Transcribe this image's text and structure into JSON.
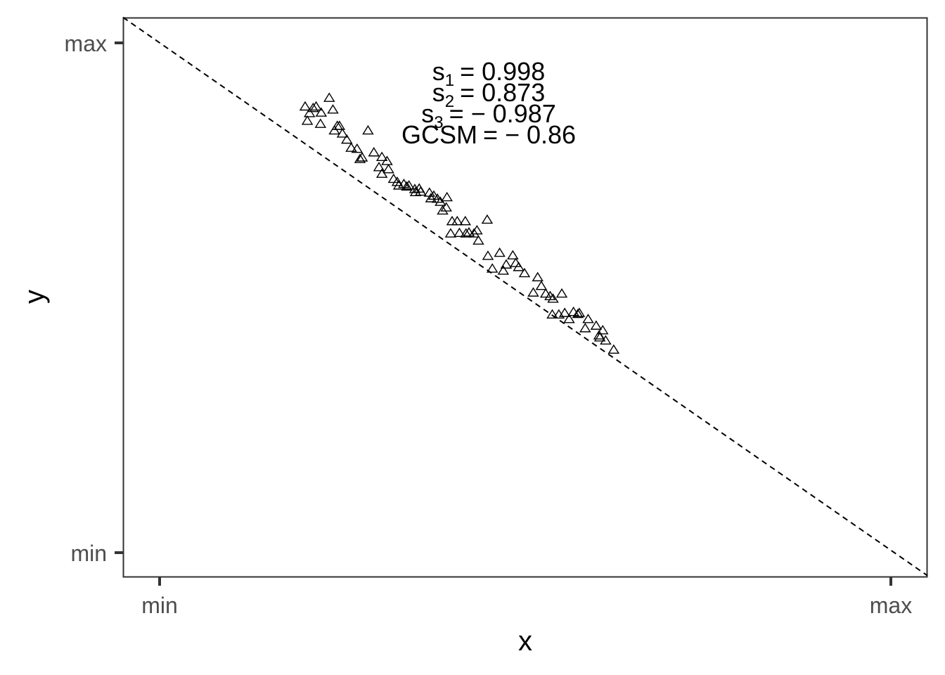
{
  "chart_data": {
    "type": "scatter",
    "title": "",
    "xlabel": "x",
    "ylabel": "y",
    "xlim": [
      -0.05,
      1.05
    ],
    "ylim": [
      -0.045,
      1.05
    ],
    "x_ticks": [
      {
        "value": 0,
        "label": "min"
      },
      {
        "value": 1,
        "label": "max"
      }
    ],
    "y_ticks": [
      {
        "value": 0,
        "label": "min"
      },
      {
        "value": 1,
        "label": "max"
      }
    ],
    "grid": false,
    "marker": "open-triangle",
    "reference_line": {
      "style": "dashed",
      "from": [
        -0.05,
        1.05
      ],
      "to": [
        1.05,
        -0.045
      ]
    },
    "annotations": [
      {
        "lhs": "s",
        "sub": "1",
        "rhs": "= 0.998"
      },
      {
        "lhs": "s",
        "sub": "2",
        "rhs": "= 0.873"
      },
      {
        "lhs": "s",
        "sub": "3",
        "rhs": "= − 0.987"
      },
      {
        "lhs": "GCSM",
        "sub": "",
        "rhs": "= − 0.86"
      }
    ],
    "points": [
      [
        0.232,
        0.892
      ],
      [
        0.21,
        0.872
      ],
      [
        0.205,
        0.862
      ],
      [
        0.199,
        0.875
      ],
      [
        0.214,
        0.875
      ],
      [
        0.237,
        0.869
      ],
      [
        0.202,
        0.847
      ],
      [
        0.221,
        0.863
      ],
      [
        0.22,
        0.841
      ],
      [
        0.239,
        0.828
      ],
      [
        0.243,
        0.837
      ],
      [
        0.246,
        0.837
      ],
      [
        0.25,
        0.822
      ],
      [
        0.256,
        0.81
      ],
      [
        0.262,
        0.794
      ],
      [
        0.27,
        0.792
      ],
      [
        0.285,
        0.828
      ],
      [
        0.293,
        0.785
      ],
      [
        0.274,
        0.772
      ],
      [
        0.277,
        0.775
      ],
      [
        0.304,
        0.776
      ],
      [
        0.311,
        0.768
      ],
      [
        0.3,
        0.756
      ],
      [
        0.304,
        0.743
      ],
      [
        0.313,
        0.752
      ],
      [
        0.32,
        0.733
      ],
      [
        0.325,
        0.727
      ],
      [
        0.327,
        0.72
      ],
      [
        0.334,
        0.723
      ],
      [
        0.338,
        0.718
      ],
      [
        0.341,
        0.72
      ],
      [
        0.349,
        0.713
      ],
      [
        0.35,
        0.707
      ],
      [
        0.355,
        0.714
      ],
      [
        0.357,
        0.708
      ],
      [
        0.369,
        0.706
      ],
      [
        0.375,
        0.7
      ],
      [
        0.371,
        0.695
      ],
      [
        0.393,
        0.697
      ],
      [
        0.38,
        0.694
      ],
      [
        0.384,
        0.688
      ],
      [
        0.392,
        0.677
      ],
      [
        0.387,
        0.671
      ],
      [
        0.4,
        0.65
      ],
      [
        0.407,
        0.65
      ],
      [
        0.418,
        0.65
      ],
      [
        0.41,
        0.627
      ],
      [
        0.398,
        0.626
      ],
      [
        0.419,
        0.626
      ],
      [
        0.423,
        0.628
      ],
      [
        0.434,
        0.632
      ],
      [
        0.43,
        0.626
      ],
      [
        0.448,
        0.653
      ],
      [
        0.436,
        0.612
      ],
      [
        0.449,
        0.582
      ],
      [
        0.465,
        0.588
      ],
      [
        0.474,
        0.565
      ],
      [
        0.455,
        0.557
      ],
      [
        0.47,
        0.553
      ],
      [
        0.483,
        0.583
      ],
      [
        0.491,
        0.56
      ],
      [
        0.487,
        0.568
      ],
      [
        0.499,
        0.548
      ],
      [
        0.517,
        0.54
      ],
      [
        0.522,
        0.523
      ],
      [
        0.511,
        0.51
      ],
      [
        0.528,
        0.508
      ],
      [
        0.534,
        0.503
      ],
      [
        0.538,
        0.498
      ],
      [
        0.55,
        0.508
      ],
      [
        0.566,
        0.472
      ],
      [
        0.537,
        0.467
      ],
      [
        0.546,
        0.467
      ],
      [
        0.56,
        0.458
      ],
      [
        0.554,
        0.47
      ],
      [
        0.574,
        0.47
      ],
      [
        0.572,
        0.468
      ],
      [
        0.586,
        0.458
      ],
      [
        0.582,
        0.44
      ],
      [
        0.597,
        0.445
      ],
      [
        0.601,
        0.426
      ],
      [
        0.602,
        0.422
      ],
      [
        0.61,
        0.416
      ],
      [
        0.606,
        0.436
      ],
      [
        0.621,
        0.398
      ]
    ]
  }
}
